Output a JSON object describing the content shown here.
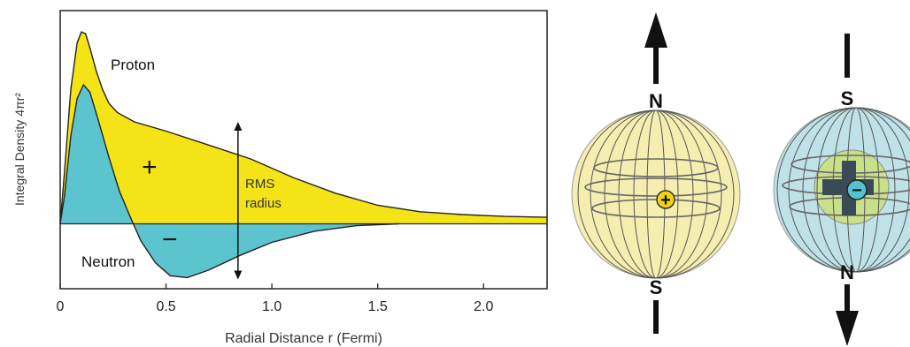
{
  "chart_data": {
    "type": "area",
    "xlabel": "Radial Distance r (Fermi)",
    "ylabel": "Integral Density 4πr²",
    "xlim": [
      0,
      2.3
    ],
    "xticks": [
      {
        "value": 0,
        "label": "0"
      },
      {
        "value": 0.5,
        "label": "0.5"
      },
      {
        "value": 1.0,
        "label": "1.0"
      },
      {
        "value": 1.5,
        "label": "1.5"
      },
      {
        "value": 2.0,
        "label": "2.0"
      }
    ],
    "ylim": [
      -0.7,
      2.3
    ],
    "yticks": [],
    "grid": false,
    "series": [
      {
        "name": "Proton",
        "fill": "#f4e417",
        "points": [
          [
            0,
            0
          ],
          [
            0.02,
            0.55
          ],
          [
            0.05,
            1.45
          ],
          [
            0.08,
            1.95
          ],
          [
            0.1,
            2.07
          ],
          [
            0.12,
            2.05
          ],
          [
            0.14,
            1.9
          ],
          [
            0.17,
            1.65
          ],
          [
            0.2,
            1.45
          ],
          [
            0.23,
            1.3
          ],
          [
            0.27,
            1.2
          ],
          [
            0.35,
            1.1
          ],
          [
            0.5,
            1.0
          ],
          [
            0.7,
            0.85
          ],
          [
            0.9,
            0.7
          ],
          [
            1.1,
            0.5
          ],
          [
            1.3,
            0.33
          ],
          [
            1.5,
            0.2
          ],
          [
            1.7,
            0.13
          ],
          [
            1.9,
            0.1
          ],
          [
            2.1,
            0.08
          ],
          [
            2.3,
            0.07
          ]
        ]
      },
      {
        "name": "Neutron",
        "fill": "#5cc4cf",
        "points": [
          [
            0,
            0
          ],
          [
            0.02,
            0.3
          ],
          [
            0.05,
            0.95
          ],
          [
            0.08,
            1.35
          ],
          [
            0.11,
            1.5
          ],
          [
            0.14,
            1.42
          ],
          [
            0.18,
            1.12
          ],
          [
            0.23,
            0.72
          ],
          [
            0.28,
            0.35
          ],
          [
            0.33,
            0.08
          ],
          [
            0.38,
            -0.18
          ],
          [
            0.45,
            -0.42
          ],
          [
            0.52,
            -0.56
          ],
          [
            0.6,
            -0.58
          ],
          [
            0.7,
            -0.5
          ],
          [
            0.85,
            -0.34
          ],
          [
            1.0,
            -0.2
          ],
          [
            1.2,
            -0.08
          ],
          [
            1.4,
            -0.02
          ],
          [
            1.6,
            0.0
          ]
        ]
      }
    ],
    "annotations": {
      "proton_label": "Proton",
      "neutron_label": "Neutron",
      "plus_sign": "+",
      "minus_sign": "−",
      "rms_line1": "RMS",
      "rms_line2": "radius",
      "rms_arrow_x": 0.84,
      "rms_arrow_y": [
        1.1,
        -0.6
      ]
    }
  },
  "diagrams": {
    "proton": {
      "top_pole": "N",
      "bottom_pole": "S",
      "charge": "+",
      "sphere_color": "#f6eeb0",
      "core_color": "#f2d21a",
      "arrow": "up-arrow"
    },
    "neutron": {
      "top_pole": "S",
      "bottom_pole": "N",
      "charge": "−",
      "sphere_color": "#bfe2e8",
      "inner_color": "#c9e08a",
      "core_color": "#53c3cf",
      "arrow": "down-arrow"
    }
  }
}
